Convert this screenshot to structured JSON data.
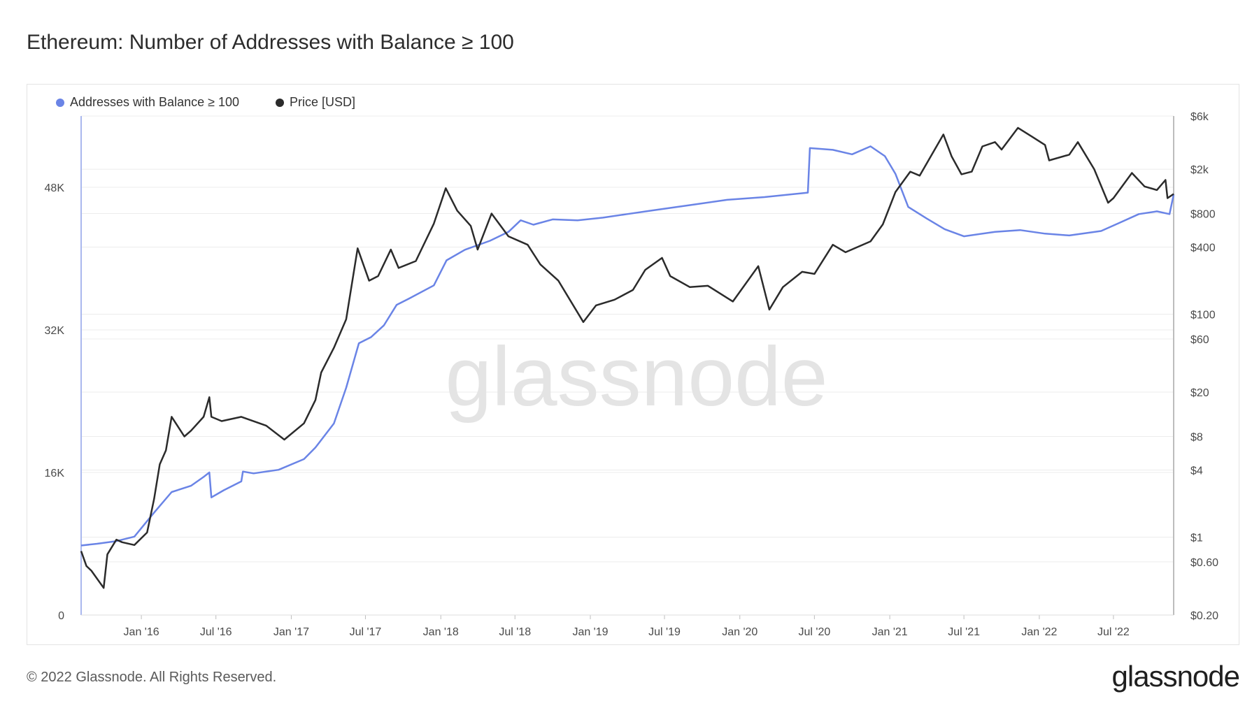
{
  "title": "Ethereum: Number of Addresses with Balance ≥ 100",
  "footer": "© 2022 Glassnode. All Rights Reserved.",
  "brand": "glassnode",
  "watermark": "glassnode",
  "colors": {
    "addresses": "#6a84e6",
    "price": "#2b2b2b",
    "grid": "#ececec",
    "axis": "#bdbdbd"
  },
  "chart_data": {
    "type": "line",
    "title": "Ethereum: Number of Addresses with Balance ≥ 100",
    "legend_position": "top-left",
    "grid": true,
    "x_ticks": [
      "Jan '16",
      "Jul '16",
      "Jan '17",
      "Jul '17",
      "Jan '18",
      "Jul '18",
      "Jan '19",
      "Jul '19",
      "Jan '20",
      "Jul '20",
      "Jan '21",
      "Jul '21",
      "Jan '22",
      "Jul '22"
    ],
    "x_range": [
      "2015-08-07",
      "2022-11-25"
    ],
    "y_left": {
      "ticks": [
        "0",
        "16K",
        "32K",
        "48K"
      ],
      "range": [
        0,
        56000
      ]
    },
    "y_right": {
      "scale": "log",
      "ticks": [
        "$0.20",
        "$0.60",
        "$1",
        "$4",
        "$8",
        "$20",
        "$60",
        "$100",
        "$400",
        "$800",
        "$2k",
        "$6k"
      ],
      "range": [
        0.2,
        6000
      ]
    },
    "series": [
      {
        "name": "Addresses with Balance ≥ 100",
        "axis": "left",
        "points": [
          [
            "2015-08-07",
            7800
          ],
          [
            "2015-09-15",
            8000
          ],
          [
            "2015-11-01",
            8300
          ],
          [
            "2015-12-15",
            8800
          ],
          [
            "2016-02-01",
            11500
          ],
          [
            "2016-03-15",
            13800
          ],
          [
            "2016-05-01",
            14500
          ],
          [
            "2016-06-01",
            15500
          ],
          [
            "2016-06-15",
            16000
          ],
          [
            "2016-06-20",
            13200
          ],
          [
            "2016-07-20",
            14000
          ],
          [
            "2016-09-01",
            15000
          ],
          [
            "2016-09-05",
            16100
          ],
          [
            "2016-10-01",
            15900
          ],
          [
            "2016-12-01",
            16300
          ],
          [
            "2017-02-01",
            17500
          ],
          [
            "2017-03-01",
            18800
          ],
          [
            "2017-04-15",
            21500
          ],
          [
            "2017-05-15",
            25500
          ],
          [
            "2017-06-15",
            30500
          ],
          [
            "2017-07-15",
            31200
          ],
          [
            "2017-08-15",
            32500
          ],
          [
            "2017-09-15",
            34800
          ],
          [
            "2017-10-15",
            35500
          ],
          [
            "2017-12-15",
            37000
          ],
          [
            "2018-01-15",
            39800
          ],
          [
            "2018-03-01",
            41000
          ],
          [
            "2018-05-01",
            42000
          ],
          [
            "2018-06-15",
            43000
          ],
          [
            "2018-07-15",
            44300
          ],
          [
            "2018-08-15",
            43800
          ],
          [
            "2018-10-01",
            44400
          ],
          [
            "2018-12-01",
            44300
          ],
          [
            "2019-02-01",
            44600
          ],
          [
            "2019-04-01",
            45000
          ],
          [
            "2019-06-01",
            45400
          ],
          [
            "2019-09-01",
            46000
          ],
          [
            "2019-12-01",
            46600
          ],
          [
            "2020-03-01",
            46900
          ],
          [
            "2020-06-15",
            47400
          ],
          [
            "2020-06-20",
            52400
          ],
          [
            "2020-08-15",
            52200
          ],
          [
            "2020-10-01",
            51700
          ],
          [
            "2020-11-15",
            52600
          ],
          [
            "2020-12-20",
            51500
          ],
          [
            "2021-01-15",
            49500
          ],
          [
            "2021-02-15",
            45800
          ],
          [
            "2021-04-01",
            44500
          ],
          [
            "2021-05-15",
            43300
          ],
          [
            "2021-07-01",
            42500
          ],
          [
            "2021-09-15",
            43000
          ],
          [
            "2021-11-15",
            43200
          ],
          [
            "2022-01-15",
            42800
          ],
          [
            "2022-03-15",
            42600
          ],
          [
            "2022-06-01",
            43100
          ],
          [
            "2022-07-15",
            44000
          ],
          [
            "2022-09-01",
            45000
          ],
          [
            "2022-10-15",
            45300
          ],
          [
            "2022-11-15",
            45000
          ],
          [
            "2022-11-25",
            47200
          ]
        ]
      },
      {
        "name": "Price [USD]",
        "axis": "right",
        "points": [
          [
            "2015-08-07",
            0.75
          ],
          [
            "2015-08-20",
            0.55
          ],
          [
            "2015-09-01",
            0.5
          ],
          [
            "2015-10-01",
            0.35
          ],
          [
            "2015-10-10",
            0.7
          ],
          [
            "2015-11-01",
            0.95
          ],
          [
            "2015-11-15",
            0.9
          ],
          [
            "2015-12-15",
            0.85
          ],
          [
            "2016-01-15",
            1.1
          ],
          [
            "2016-02-01",
            2.2
          ],
          [
            "2016-02-15",
            4.5
          ],
          [
            "2016-03-01",
            6
          ],
          [
            "2016-03-15",
            12
          ],
          [
            "2016-04-15",
            8
          ],
          [
            "2016-05-01",
            9
          ],
          [
            "2016-06-01",
            12
          ],
          [
            "2016-06-15",
            18
          ],
          [
            "2016-06-20",
            12
          ],
          [
            "2016-07-15",
            11
          ],
          [
            "2016-09-01",
            12
          ],
          [
            "2016-11-01",
            10
          ],
          [
            "2016-12-15",
            7.5
          ],
          [
            "2017-02-01",
            10.5
          ],
          [
            "2017-03-01",
            17
          ],
          [
            "2017-03-15",
            30
          ],
          [
            "2017-04-15",
            50
          ],
          [
            "2017-05-15",
            90
          ],
          [
            "2017-06-12",
            390
          ],
          [
            "2017-07-10",
            200
          ],
          [
            "2017-08-01",
            220
          ],
          [
            "2017-09-01",
            380
          ],
          [
            "2017-09-20",
            260
          ],
          [
            "2017-11-01",
            300
          ],
          [
            "2017-12-15",
            650
          ],
          [
            "2018-01-13",
            1350
          ],
          [
            "2018-02-10",
            850
          ],
          [
            "2018-03-15",
            620
          ],
          [
            "2018-04-01",
            380
          ],
          [
            "2018-05-05",
            800
          ],
          [
            "2018-06-15",
            500
          ],
          [
            "2018-08-01",
            420
          ],
          [
            "2018-09-01",
            280
          ],
          [
            "2018-10-15",
            200
          ],
          [
            "2018-12-15",
            85
          ],
          [
            "2019-01-15",
            120
          ],
          [
            "2019-03-01",
            135
          ],
          [
            "2019-04-15",
            165
          ],
          [
            "2019-05-15",
            250
          ],
          [
            "2019-06-25",
            320
          ],
          [
            "2019-07-15",
            220
          ],
          [
            "2019-09-01",
            175
          ],
          [
            "2019-10-15",
            180
          ],
          [
            "2019-12-15",
            130
          ],
          [
            "2020-02-15",
            270
          ],
          [
            "2020-03-13",
            110
          ],
          [
            "2020-04-15",
            175
          ],
          [
            "2020-06-01",
            240
          ],
          [
            "2020-07-01",
            230
          ],
          [
            "2020-08-15",
            420
          ],
          [
            "2020-09-15",
            360
          ],
          [
            "2020-11-15",
            450
          ],
          [
            "2020-12-15",
            640
          ],
          [
            "2021-01-15",
            1250
          ],
          [
            "2021-02-20",
            1900
          ],
          [
            "2021-03-15",
            1750
          ],
          [
            "2021-05-12",
            4100
          ],
          [
            "2021-06-01",
            2600
          ],
          [
            "2021-06-25",
            1800
          ],
          [
            "2021-07-20",
            1900
          ],
          [
            "2021-08-15",
            3200
          ],
          [
            "2021-09-15",
            3500
          ],
          [
            "2021-10-01",
            3000
          ],
          [
            "2021-11-10",
            4700
          ],
          [
            "2021-12-15",
            3900
          ],
          [
            "2022-01-15",
            3300
          ],
          [
            "2022-01-25",
            2400
          ],
          [
            "2022-03-15",
            2700
          ],
          [
            "2022-04-05",
            3500
          ],
          [
            "2022-05-15",
            2000
          ],
          [
            "2022-06-18",
            1000
          ],
          [
            "2022-07-01",
            1100
          ],
          [
            "2022-08-15",
            1850
          ],
          [
            "2022-09-15",
            1400
          ],
          [
            "2022-10-15",
            1300
          ],
          [
            "2022-11-05",
            1600
          ],
          [
            "2022-11-10",
            1100
          ],
          [
            "2022-11-25",
            1200
          ]
        ]
      }
    ]
  }
}
